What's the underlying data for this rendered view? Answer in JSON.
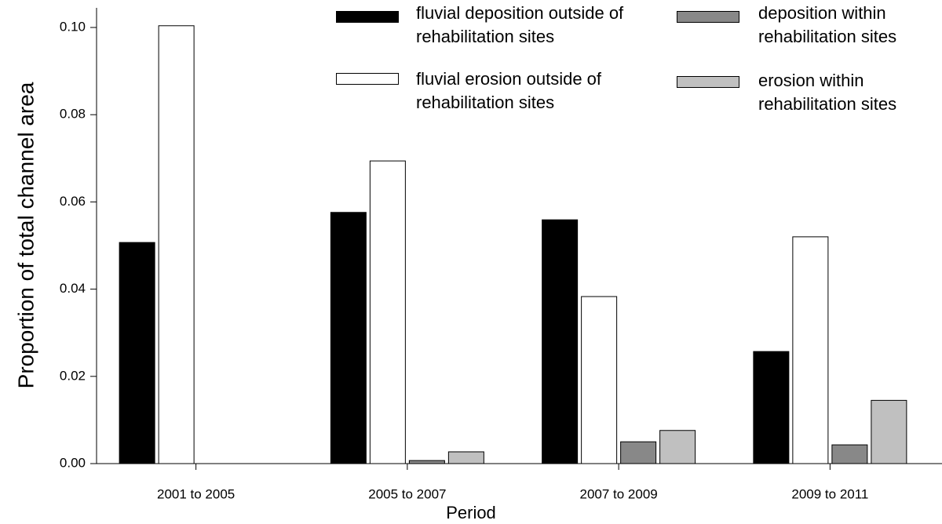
{
  "chart_data": {
    "type": "bar",
    "x_label": "Period",
    "y_label": "Proportion of total channel area",
    "categories": [
      "2001 to 2005",
      "2005 to 2007",
      "2007 to 2009",
      "2009 to 2011"
    ],
    "series": [
      {
        "name": "fluvial deposition outside of rehabilitation sites",
        "color": "#000000",
        "values": [
          0.0507,
          0.0576,
          0.0559,
          0.0257
        ]
      },
      {
        "name": "fluvial erosion outside of rehabilitation sites",
        "color": "#ffffff",
        "values": [
          0.1004,
          0.0694,
          0.0383,
          0.052
        ]
      },
      {
        "name": "deposition within rehabilitation sites",
        "color": "#888888",
        "values": [
          0,
          0.0007,
          0.005,
          0.0043
        ]
      },
      {
        "name": "erosion within rehabilitation sites",
        "color": "#c0c0c0",
        "values": [
          0,
          0.0027,
          0.0076,
          0.0145
        ]
      }
    ],
    "ylim": [
      0,
      0.1045
    ],
    "yticks": [
      {
        "value": 0,
        "label": "0.00"
      },
      {
        "value": 0.02,
        "label": "0.02"
      },
      {
        "value": 0.04,
        "label": "0.04"
      },
      {
        "value": 0.06,
        "label": "0.06"
      },
      {
        "value": 0.08,
        "label": "0.08"
      },
      {
        "value": 0.1,
        "label": "0.10"
      }
    ],
    "legend": "top-right"
  }
}
